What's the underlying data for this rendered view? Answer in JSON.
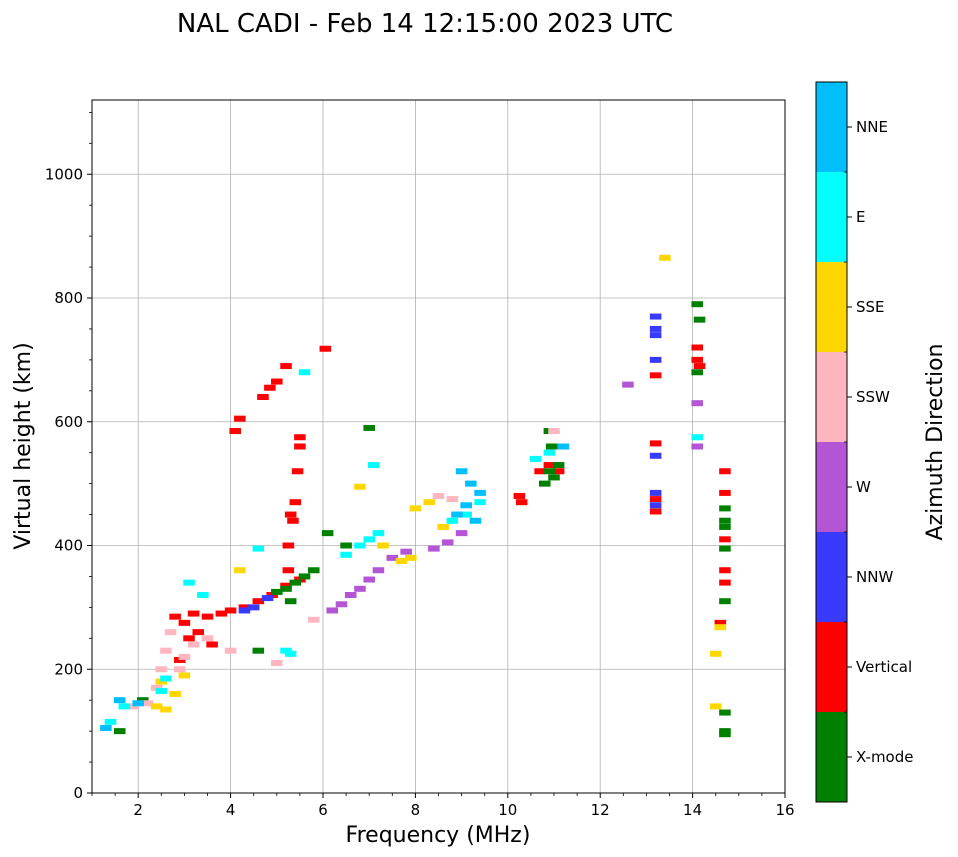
{
  "chart_data": {
    "type": "scatter",
    "title": "NAL CADI - Feb 14 12:15:00 2023 UTC",
    "xlabel": "Frequency (MHz)",
    "ylabel": "Virtual height (km)",
    "xlim": [
      1,
      16
    ],
    "ylim": [
      0,
      1120
    ],
    "xticks": [
      2,
      4,
      6,
      8,
      10,
      12,
      14,
      16
    ],
    "yticks": [
      0,
      200,
      400,
      600,
      800,
      1000
    ],
    "grid": true,
    "colorbar": {
      "title": "Azimuth Direction",
      "categories": [
        {
          "name": "X-mode",
          "color": "#008000"
        },
        {
          "name": "Vertical",
          "color": "#ff0000"
        },
        {
          "name": "NNW",
          "color": "#3a3aff"
        },
        {
          "name": "W",
          "color": "#b455d6"
        },
        {
          "name": "SSW",
          "color": "#ffb6c1"
        },
        {
          "name": "SSE",
          "color": "#ffd700"
        },
        {
          "name": "E",
          "color": "#00ffff"
        },
        {
          "name": "NNE",
          "color": "#00bfff"
        }
      ]
    },
    "series": [
      {
        "name": "Vertical",
        "points": [
          [
            2.8,
            285
          ],
          [
            3.0,
            275
          ],
          [
            3.2,
            290
          ],
          [
            3.5,
            285
          ],
          [
            3.8,
            290
          ],
          [
            4.0,
            295
          ],
          [
            4.3,
            300
          ],
          [
            4.6,
            310
          ],
          [
            4.9,
            320
          ],
          [
            5.2,
            335
          ],
          [
            5.5,
            345
          ],
          [
            3.1,
            250
          ],
          [
            3.3,
            260
          ],
          [
            3.6,
            240
          ],
          [
            2.9,
            215
          ],
          [
            4.1,
            585
          ],
          [
            4.2,
            605
          ],
          [
            4.7,
            640
          ],
          [
            4.85,
            655
          ],
          [
            5.0,
            665
          ],
          [
            5.2,
            690
          ],
          [
            5.3,
            450
          ],
          [
            5.35,
            440
          ],
          [
            5.25,
            400
          ],
          [
            5.4,
            470
          ],
          [
            5.45,
            520
          ],
          [
            5.5,
            560
          ],
          [
            5.5,
            575
          ],
          [
            5.25,
            360
          ],
          [
            6.05,
            718
          ],
          [
            10.25,
            480
          ],
          [
            10.3,
            470
          ],
          [
            10.7,
            520
          ],
          [
            10.9,
            530
          ],
          [
            11.1,
            520
          ],
          [
            13.2,
            675
          ],
          [
            13.2,
            565
          ],
          [
            13.2,
            475
          ],
          [
            13.2,
            455
          ],
          [
            14.1,
            700
          ],
          [
            14.1,
            720
          ],
          [
            14.15,
            690
          ],
          [
            14.7,
            520
          ],
          [
            14.7,
            485
          ],
          [
            14.7,
            410
          ],
          [
            14.7,
            360
          ],
          [
            14.7,
            340
          ],
          [
            14.6,
            275
          ]
        ]
      },
      {
        "name": "X-mode",
        "points": [
          [
            1.6,
            100
          ],
          [
            2.1,
            150
          ],
          [
            4.6,
            230
          ],
          [
            5.0,
            325
          ],
          [
            5.2,
            330
          ],
          [
            5.4,
            340
          ],
          [
            5.6,
            350
          ],
          [
            5.8,
            360
          ],
          [
            5.3,
            310
          ],
          [
            6.1,
            420
          ],
          [
            6.5,
            400
          ],
          [
            7.0,
            590
          ],
          [
            10.9,
            520
          ],
          [
            11.0,
            510
          ],
          [
            10.8,
            500
          ],
          [
            11.1,
            530
          ],
          [
            10.9,
            585
          ],
          [
            10.95,
            560
          ],
          [
            14.1,
            790
          ],
          [
            14.1,
            680
          ],
          [
            14.15,
            765
          ],
          [
            14.7,
            460
          ],
          [
            14.7,
            440
          ],
          [
            14.7,
            430
          ],
          [
            14.7,
            395
          ],
          [
            14.7,
            310
          ],
          [
            14.7,
            130
          ],
          [
            14.7,
            100
          ],
          [
            14.7,
            95
          ]
        ]
      },
      {
        "name": "NNW",
        "points": [
          [
            4.3,
            295
          ],
          [
            4.5,
            300
          ],
          [
            4.8,
            315
          ],
          [
            13.2,
            770
          ],
          [
            13.2,
            750
          ],
          [
            13.2,
            740
          ],
          [
            13.2,
            700
          ],
          [
            13.2,
            545
          ],
          [
            13.2,
            485
          ],
          [
            13.2,
            465
          ]
        ]
      },
      {
        "name": "W",
        "points": [
          [
            6.2,
            295
          ],
          [
            6.4,
            305
          ],
          [
            6.6,
            320
          ],
          [
            6.8,
            330
          ],
          [
            7.0,
            345
          ],
          [
            7.2,
            360
          ],
          [
            7.5,
            380
          ],
          [
            7.8,
            390
          ],
          [
            8.4,
            395
          ],
          [
            8.7,
            405
          ],
          [
            9.0,
            420
          ],
          [
            12.6,
            660
          ],
          [
            14.1,
            630
          ],
          [
            14.1,
            560
          ]
        ]
      },
      {
        "name": "SSW",
        "points": [
          [
            1.9,
            140
          ],
          [
            2.2,
            145
          ],
          [
            2.4,
            170
          ],
          [
            2.5,
            200
          ],
          [
            2.6,
            230
          ],
          [
            2.7,
            260
          ],
          [
            2.9,
            200
          ],
          [
            3.0,
            220
          ],
          [
            3.2,
            240
          ],
          [
            3.5,
            250
          ],
          [
            4.0,
            230
          ],
          [
            5.0,
            210
          ],
          [
            5.8,
            280
          ],
          [
            8.5,
            480
          ],
          [
            8.8,
            475
          ],
          [
            11.0,
            585
          ]
        ]
      },
      {
        "name": "SSE",
        "points": [
          [
            2.4,
            140
          ],
          [
            2.6,
            135
          ],
          [
            2.5,
            180
          ],
          [
            2.8,
            160
          ],
          [
            3.0,
            190
          ],
          [
            4.2,
            360
          ],
          [
            6.8,
            495
          ],
          [
            7.3,
            400
          ],
          [
            7.7,
            375
          ],
          [
            7.9,
            380
          ],
          [
            8.0,
            460
          ],
          [
            8.3,
            470
          ],
          [
            8.6,
            430
          ],
          [
            13.4,
            865
          ],
          [
            14.5,
            225
          ],
          [
            14.5,
            140
          ],
          [
            14.6,
            268
          ]
        ]
      },
      {
        "name": "E",
        "points": [
          [
            1.4,
            115
          ],
          [
            1.7,
            140
          ],
          [
            2.5,
            165
          ],
          [
            2.6,
            185
          ],
          [
            3.1,
            340
          ],
          [
            3.4,
            320
          ],
          [
            4.6,
            395
          ],
          [
            5.2,
            230
          ],
          [
            5.3,
            225
          ],
          [
            5.6,
            680
          ],
          [
            6.5,
            385
          ],
          [
            6.8,
            400
          ],
          [
            7.0,
            410
          ],
          [
            7.2,
            420
          ],
          [
            7.1,
            530
          ],
          [
            8.8,
            440
          ],
          [
            9.1,
            450
          ],
          [
            9.4,
            470
          ],
          [
            10.6,
            540
          ],
          [
            10.9,
            550
          ],
          [
            14.1,
            575
          ]
        ]
      },
      {
        "name": "NNE",
        "points": [
          [
            1.3,
            105
          ],
          [
            1.6,
            150
          ],
          [
            2.0,
            145
          ],
          [
            8.9,
            450
          ],
          [
            9.1,
            465
          ],
          [
            9.3,
            440
          ],
          [
            9.2,
            500
          ],
          [
            9.0,
            520
          ],
          [
            9.4,
            485
          ],
          [
            11.2,
            560
          ]
        ]
      }
    ]
  }
}
